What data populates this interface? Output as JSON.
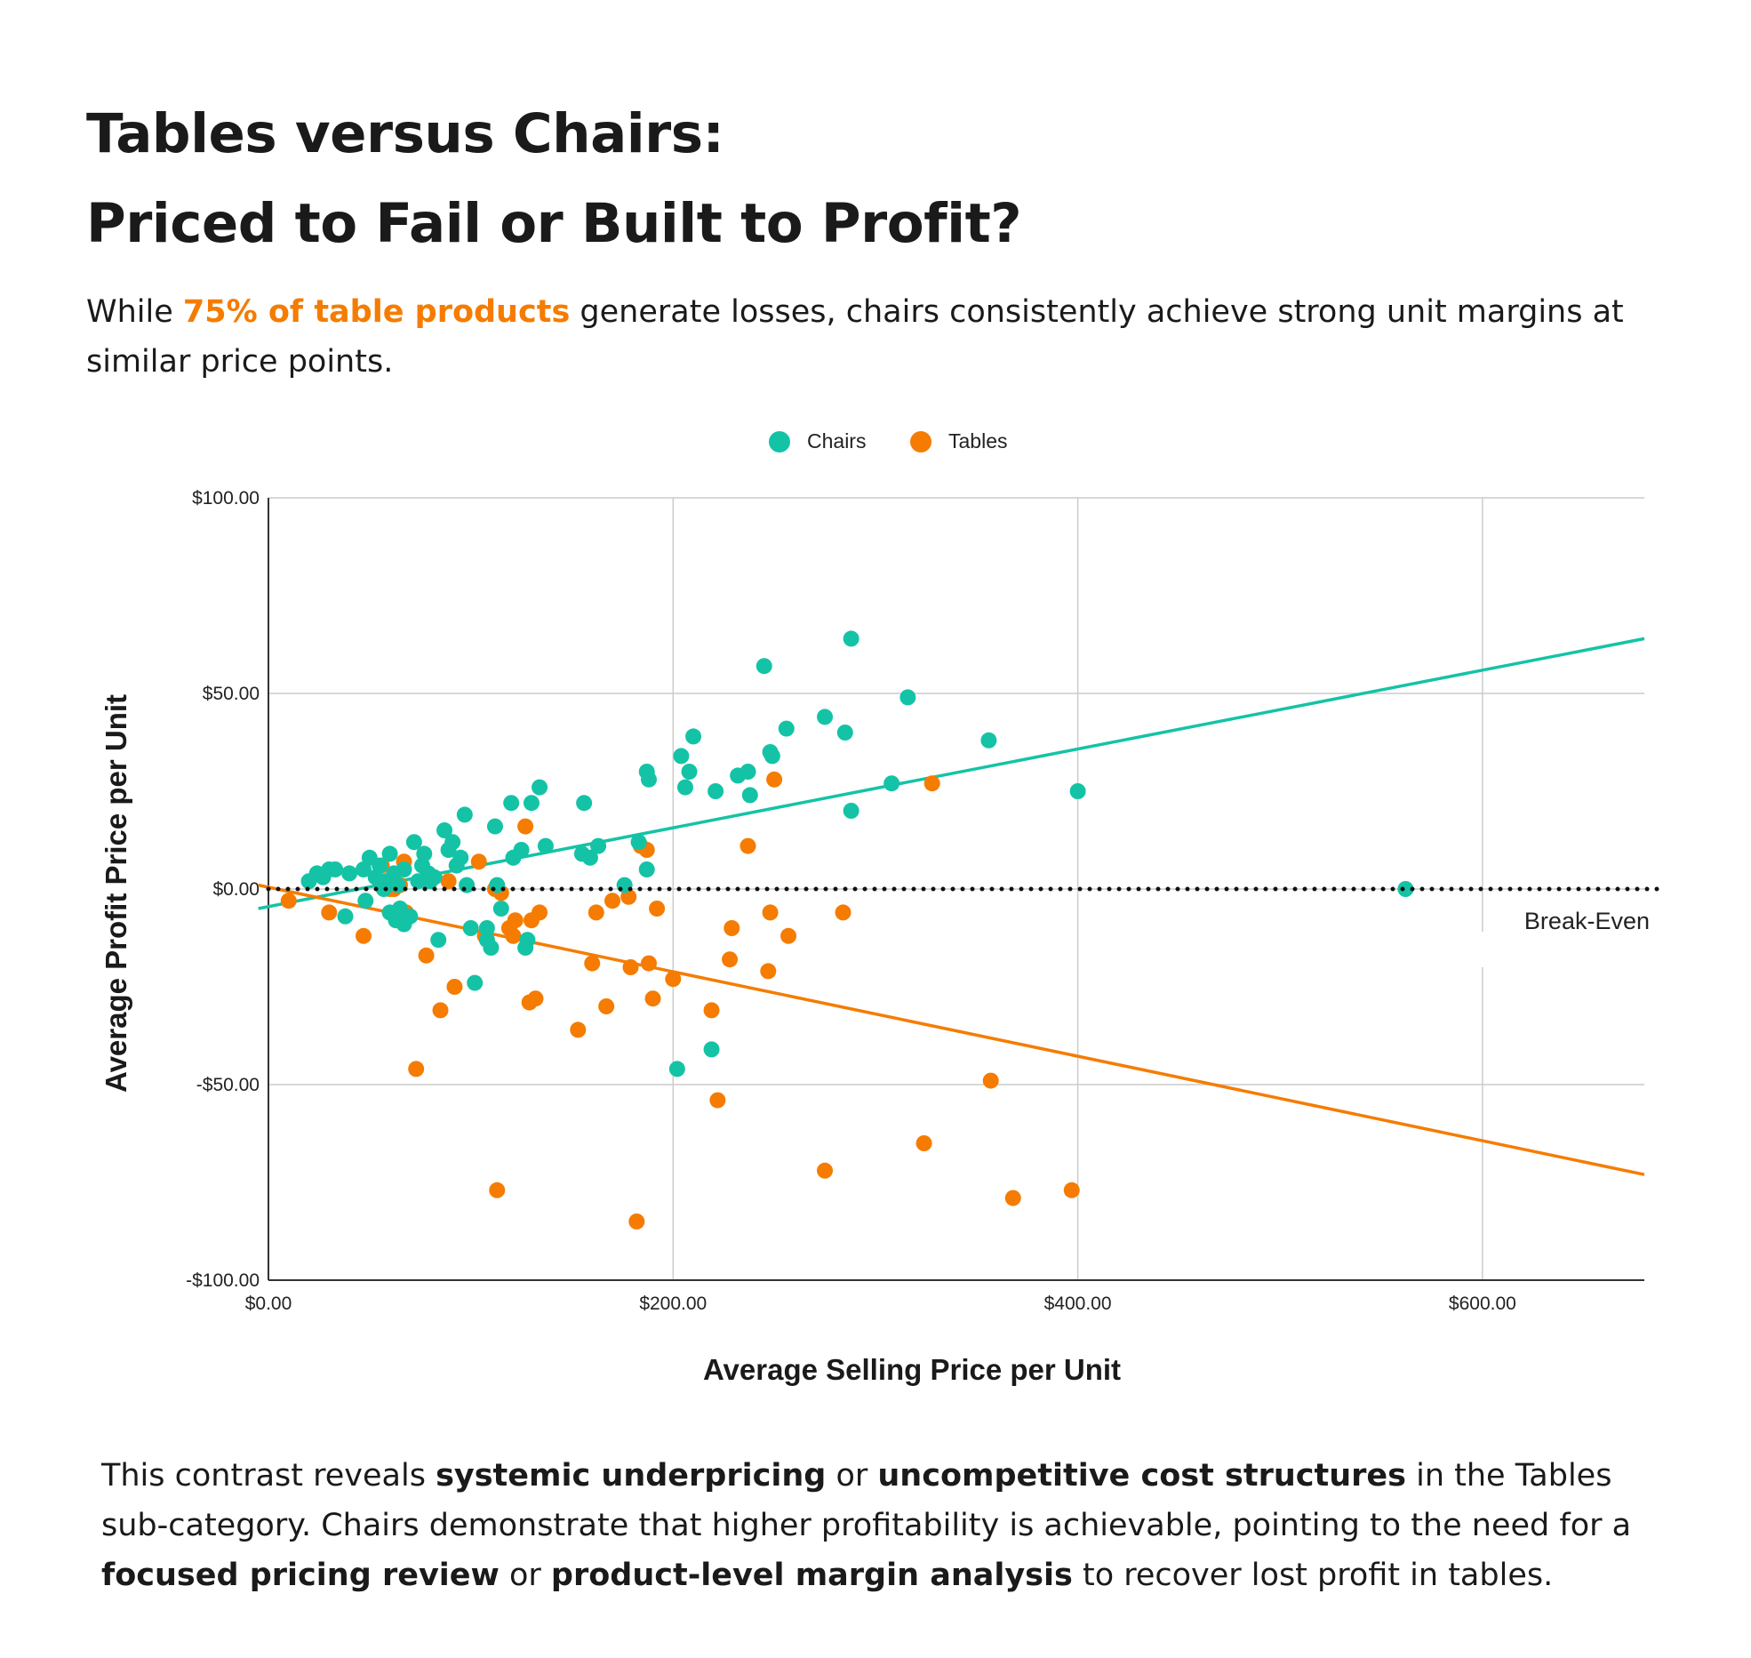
{
  "title": {
    "line1": "Tables versus Chairs:",
    "line2": "Priced to Fail or Built to Profit?"
  },
  "subtitle": {
    "pre": "While ",
    "highlight": "75% of table products",
    "post": " generate losses, chairs consistently achieve strong unit margins at similar price points."
  },
  "footer": {
    "t1": "This contrast reveals ",
    "b1": "systemic underpricing",
    "t2": " or ",
    "b2": "uncompetitive cost structures",
    "t3": " in the Tables sub-category. Chairs demonstrate that higher profitability is achievable, pointing to the need for a ",
    "b3": "focused pricing review",
    "t4": " or ",
    "b4": "product-level margin analysis",
    "t5": " to recover lost profit in tables."
  },
  "colors": {
    "chairs": "#14c3a6",
    "tables": "#f57c00",
    "grid": "#cccccc",
    "axis": "#333333",
    "breakeven": "#111111"
  },
  "chart_data": {
    "type": "scatter",
    "xlabel": "Average Selling Price per Unit",
    "ylabel": "Average Profit Price per Unit",
    "xlim": [
      0,
      680
    ],
    "ylim": [
      -100,
      100
    ],
    "x_ticks": [
      {
        "value": 0,
        "label": "$0.00"
      },
      {
        "value": 200,
        "label": "$200.00"
      },
      {
        "value": 400,
        "label": "$400.00"
      },
      {
        "value": 600,
        "label": "$600.00"
      }
    ],
    "y_ticks": [
      {
        "value": 100,
        "label": "$100.00"
      },
      {
        "value": 50,
        "label": "$50.00"
      },
      {
        "value": 0,
        "label": "$0.00"
      },
      {
        "value": -50,
        "label": "-$50.00"
      },
      {
        "value": -100,
        "label": "-$100.00"
      }
    ],
    "grid": true,
    "legend": "top-center",
    "breakeven": {
      "y": 0,
      "label": "Break-Even"
    },
    "series": [
      {
        "name": "Chairs",
        "color": "#14c3a6",
        "trendline": [
          [
            -5,
            -5
          ],
          [
            680,
            64
          ]
        ],
        "points": [
          [
            20,
            2
          ],
          [
            24,
            4
          ],
          [
            27,
            3
          ],
          [
            30,
            5
          ],
          [
            33,
            5
          ],
          [
            40,
            4
          ],
          [
            38,
            -7
          ],
          [
            47,
            5
          ],
          [
            50,
            8
          ],
          [
            48,
            -3
          ],
          [
            53,
            3
          ],
          [
            55,
            6
          ],
          [
            58,
            2
          ],
          [
            60,
            9
          ],
          [
            57,
            0
          ],
          [
            62,
            4
          ],
          [
            64,
            1
          ],
          [
            67,
            5
          ],
          [
            60,
            -6
          ],
          [
            63,
            -8
          ],
          [
            65,
            -5
          ],
          [
            67,
            -9
          ],
          [
            70,
            -7
          ],
          [
            72,
            12
          ],
          [
            74,
            2
          ],
          [
            76,
            6
          ],
          [
            77,
            9
          ],
          [
            79,
            4
          ],
          [
            80,
            2
          ],
          [
            82,
            3
          ],
          [
            84,
            -13
          ],
          [
            87,
            15
          ],
          [
            89,
            10
          ],
          [
            91,
            12
          ],
          [
            93,
            6
          ],
          [
            95,
            8
          ],
          [
            97,
            19
          ],
          [
            98,
            1
          ],
          [
            100,
            -10
          ],
          [
            102,
            -24
          ],
          [
            108,
            -13
          ],
          [
            108,
            -10
          ],
          [
            110,
            -15
          ],
          [
            112,
            16
          ],
          [
            115,
            -5
          ],
          [
            113,
            1
          ],
          [
            120,
            22
          ],
          [
            121,
            8
          ],
          [
            125,
            10
          ],
          [
            127,
            -15
          ],
          [
            128,
            -13
          ],
          [
            130,
            22
          ],
          [
            134,
            26
          ],
          [
            137,
            11
          ],
          [
            155,
            9
          ],
          [
            156,
            22
          ],
          [
            159,
            8
          ],
          [
            163,
            11
          ],
          [
            176,
            1
          ],
          [
            183,
            12
          ],
          [
            187,
            30
          ],
          [
            187,
            5
          ],
          [
            188,
            28
          ],
          [
            202,
            -46
          ],
          [
            204,
            34
          ],
          [
            206,
            26
          ],
          [
            208,
            30
          ],
          [
            210,
            39
          ],
          [
            219,
            -41
          ],
          [
            221,
            25
          ],
          [
            232,
            29
          ],
          [
            237,
            30
          ],
          [
            238,
            24
          ],
          [
            245,
            57
          ],
          [
            248,
            35
          ],
          [
            249,
            34
          ],
          [
            256,
            41
          ],
          [
            275,
            44
          ],
          [
            285,
            40
          ],
          [
            288,
            20
          ],
          [
            288,
            64
          ],
          [
            308,
            27
          ],
          [
            316,
            49
          ],
          [
            356,
            38
          ],
          [
            400,
            25
          ],
          [
            562,
            0
          ]
        ]
      },
      {
        "name": "Tables",
        "color": "#f57c00",
        "trendline": [
          [
            -5,
            1
          ],
          [
            680,
            -73
          ]
        ],
        "points": [
          [
            10,
            -3
          ],
          [
            30,
            -6
          ],
          [
            47,
            -12
          ],
          [
            56,
            6
          ],
          [
            60,
            0
          ],
          [
            62,
            0
          ],
          [
            65,
            1
          ],
          [
            67,
            7
          ],
          [
            68,
            -6
          ],
          [
            73,
            -46
          ],
          [
            78,
            -17
          ],
          [
            85,
            -31
          ],
          [
            89,
            2
          ],
          [
            92,
            -25
          ],
          [
            104,
            7
          ],
          [
            107,
            -12
          ],
          [
            112,
            0
          ],
          [
            113,
            -77
          ],
          [
            115,
            -1
          ],
          [
            119,
            -10
          ],
          [
            121,
            -12
          ],
          [
            122,
            -8
          ],
          [
            127,
            16
          ],
          [
            129,
            -29
          ],
          [
            130,
            -8
          ],
          [
            132,
            -28
          ],
          [
            134,
            -6
          ],
          [
            153,
            -36
          ],
          [
            160,
            -19
          ],
          [
            162,
            -6
          ],
          [
            167,
            -30
          ],
          [
            170,
            -3
          ],
          [
            178,
            -2
          ],
          [
            179,
            -20
          ],
          [
            182,
            -85
          ],
          [
            184,
            11
          ],
          [
            188,
            -19
          ],
          [
            187,
            10
          ],
          [
            190,
            -28
          ],
          [
            192,
            -5
          ],
          [
            200,
            -23
          ],
          [
            219,
            -31
          ],
          [
            222,
            -54
          ],
          [
            228,
            -18
          ],
          [
            229,
            -10
          ],
          [
            237,
            11
          ],
          [
            247,
            -21
          ],
          [
            248,
            -6
          ],
          [
            250,
            28
          ],
          [
            257,
            -12
          ],
          [
            275,
            -72
          ],
          [
            284,
            -6
          ],
          [
            324,
            -65
          ],
          [
            328,
            27
          ],
          [
            357,
            -49
          ],
          [
            368,
            -79
          ],
          [
            397,
            -77
          ]
        ]
      }
    ]
  }
}
